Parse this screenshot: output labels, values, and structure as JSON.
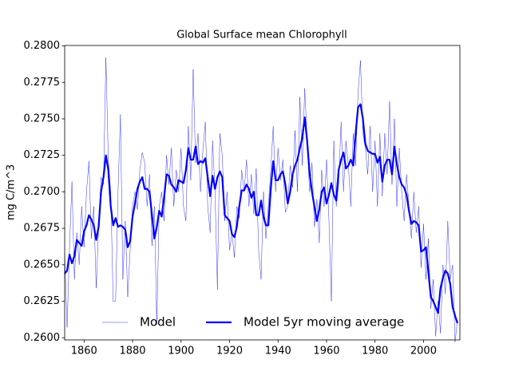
{
  "chart_data": {
    "type": "line",
    "title": "Global Surface mean Chlorophyll",
    "ylabel": "mg C/m^3",
    "legend": "lower center",
    "xlim": [
      1852,
      2015
    ],
    "ylim": [
      0.25985,
      0.28003
    ],
    "xticks": [
      1860,
      1880,
      1900,
      1920,
      1940,
      1960,
      1980,
      2000
    ],
    "yticks": [
      {
        "value": 0.26,
        "label": "0.2600"
      },
      {
        "value": 0.2625,
        "label": "0.2625"
      },
      {
        "value": 0.265,
        "label": "0.2650"
      },
      {
        "value": 0.2675,
        "label": "0.2675"
      },
      {
        "value": 0.27,
        "label": "0.2700"
      },
      {
        "value": 0.2725,
        "label": "0.2725"
      },
      {
        "value": 0.275,
        "label": "0.2750"
      },
      {
        "value": 0.2775,
        "label": "0.2775"
      },
      {
        "value": 0.28,
        "label": "0.2800"
      }
    ],
    "x": [
      1852,
      1853,
      1854,
      1855,
      1856,
      1857,
      1858,
      1859,
      1860,
      1861,
      1862,
      1863,
      1864,
      1865,
      1866,
      1867,
      1868,
      1869,
      1870,
      1871,
      1872,
      1873,
      1874,
      1875,
      1876,
      1877,
      1878,
      1879,
      1880,
      1881,
      1882,
      1883,
      1884,
      1885,
      1886,
      1887,
      1888,
      1889,
      1890,
      1891,
      1892,
      1893,
      1894,
      1895,
      1896,
      1897,
      1898,
      1899,
      1900,
      1901,
      1902,
      1903,
      1904,
      1905,
      1906,
      1907,
      1908,
      1909,
      1910,
      1911,
      1912,
      1913,
      1914,
      1915,
      1916,
      1917,
      1918,
      1919,
      1920,
      1921,
      1922,
      1923,
      1924,
      1925,
      1926,
      1927,
      1928,
      1929,
      1930,
      1931,
      1932,
      1933,
      1934,
      1935,
      1936,
      1937,
      1938,
      1939,
      1940,
      1941,
      1942,
      1943,
      1944,
      1945,
      1946,
      1947,
      1948,
      1949,
      1950,
      1951,
      1952,
      1953,
      1954,
      1955,
      1956,
      1957,
      1958,
      1959,
      1960,
      1961,
      1962,
      1963,
      1964,
      1965,
      1966,
      1967,
      1968,
      1969,
      1970,
      1971,
      1972,
      1973,
      1974,
      1975,
      1976,
      1977,
      1978,
      1979,
      1980,
      1981,
      1982,
      1983,
      1984,
      1985,
      1986,
      1987,
      1988,
      1989,
      1990,
      1991,
      1992,
      1993,
      1994,
      1995,
      1996,
      1997,
      1998,
      1999,
      2000,
      2001,
      2002,
      2003,
      2004,
      2005,
      2006,
      2007,
      2008,
      2009,
      2010,
      2011,
      2012,
      2013,
      2014
    ],
    "series": [
      {
        "name": "Model",
        "color": "#0000ff",
        "width": 0.4,
        "values": [
          0.2658,
          0.2607,
          0.2662,
          0.2707,
          0.264,
          0.2672,
          0.265,
          0.269,
          0.2662,
          0.27,
          0.2721,
          0.2668,
          0.269,
          0.2634,
          0.2676,
          0.271,
          0.2705,
          0.2792,
          0.2722,
          0.27,
          0.2625,
          0.2625,
          0.27,
          0.2753,
          0.264,
          0.268,
          0.2628,
          0.266,
          0.269,
          0.27,
          0.2688,
          0.2715,
          0.2727,
          0.272,
          0.269,
          0.2712,
          0.2663,
          0.269,
          0.2609,
          0.269,
          0.27,
          0.268,
          0.2725,
          0.2705,
          0.273,
          0.269,
          0.2715,
          0.27,
          0.273,
          0.269,
          0.268,
          0.2745,
          0.2708,
          0.2784,
          0.272,
          0.274,
          0.27,
          0.2728,
          0.2748,
          0.269,
          0.2672,
          0.2735,
          0.27,
          0.2633,
          0.274,
          0.2725,
          0.268,
          0.27,
          0.266,
          0.2672,
          0.2655,
          0.269,
          0.2682,
          0.2715,
          0.27,
          0.2722,
          0.269,
          0.2712,
          0.2685,
          0.2716,
          0.266,
          0.264,
          0.27,
          0.2668,
          0.269,
          0.2715,
          0.2745,
          0.27,
          0.273,
          0.2708,
          0.2722,
          0.2686,
          0.269,
          0.2718,
          0.2703,
          0.2742,
          0.27,
          0.2765,
          0.2718,
          0.2771,
          0.2735,
          0.27,
          0.272,
          0.2676,
          0.2695,
          0.2665,
          0.2715,
          0.269,
          0.2722,
          0.268,
          0.2625,
          0.2735,
          0.269,
          0.2705,
          0.2748,
          0.27,
          0.2735,
          0.2718,
          0.269,
          0.274,
          0.2718,
          0.2768,
          0.279,
          0.274,
          0.273,
          0.2712,
          0.2745,
          0.27,
          0.2735,
          0.269,
          0.274,
          0.2697,
          0.274,
          0.2712,
          0.2762,
          0.2705,
          0.275,
          0.269,
          0.273,
          0.27,
          0.268,
          0.2712,
          0.269,
          0.2668,
          0.27,
          0.2672,
          0.269,
          0.2648,
          0.2678,
          0.264,
          0.2668,
          0.262,
          0.264,
          0.2601,
          0.2625,
          0.2603,
          0.265,
          0.263,
          0.268,
          0.264,
          0.265,
          0.2597,
          0.2612
        ]
      },
      {
        "name": "Model 5yr moving average",
        "color": "#0000ff",
        "width": 2.2,
        "values": [
          0.2644,
          0.2646,
          0.2657,
          0.2651,
          0.2656,
          0.2667,
          0.2665,
          0.2663,
          0.2673,
          0.2677,
          0.2684,
          0.2681,
          0.2677,
          0.2667,
          0.2676,
          0.27,
          0.271,
          0.2725,
          0.2715,
          0.269,
          0.2677,
          0.2682,
          0.2676,
          0.2677,
          0.2676,
          0.2674,
          0.2662,
          0.2666,
          0.2683,
          0.2692,
          0.2702,
          0.2707,
          0.271,
          0.2702,
          0.2702,
          0.27,
          0.2684,
          0.2668,
          0.2676,
          0.2687,
          0.2683,
          0.2696,
          0.2712,
          0.2711,
          0.2705,
          0.2703,
          0.27,
          0.2708,
          0.2707,
          0.2706,
          0.2715,
          0.273,
          0.2722,
          0.2722,
          0.2731,
          0.2719,
          0.2721,
          0.272,
          0.2723,
          0.271,
          0.2697,
          0.2711,
          0.2702,
          0.271,
          0.2714,
          0.271,
          0.2684,
          0.2682,
          0.268,
          0.2671,
          0.2669,
          0.2676,
          0.269,
          0.2701,
          0.2701,
          0.2705,
          0.2702,
          0.2696,
          0.27,
          0.2684,
          0.2684,
          0.2694,
          0.2683,
          0.2677,
          0.2677,
          0.2702,
          0.2721,
          0.2708,
          0.2708,
          0.2712,
          0.2714,
          0.2705,
          0.2692,
          0.27,
          0.2712,
          0.2718,
          0.2722,
          0.273,
          0.2737,
          0.2751,
          0.2735,
          0.2713,
          0.27,
          0.269,
          0.268,
          0.2688,
          0.27,
          0.2703,
          0.2692,
          0.2698,
          0.2706,
          0.2698,
          0.2694,
          0.2715,
          0.2722,
          0.2727,
          0.2716,
          0.2718,
          0.2722,
          0.2718,
          0.274,
          0.2758,
          0.276,
          0.275,
          0.2733,
          0.2728,
          0.2727,
          0.2726,
          0.2726,
          0.272,
          0.2724,
          0.2707,
          0.2718,
          0.2722,
          0.2722,
          0.2712,
          0.2731,
          0.2719,
          0.271,
          0.2705,
          0.2703,
          0.2698,
          0.2687,
          0.2678,
          0.268,
          0.2679,
          0.2677,
          0.2659,
          0.266,
          0.2662,
          0.2645,
          0.2628,
          0.2625,
          0.2621,
          0.2617,
          0.2634,
          0.2641,
          0.2646,
          0.2644,
          0.2637,
          0.2621,
          0.2615,
          0.261
        ]
      }
    ]
  }
}
